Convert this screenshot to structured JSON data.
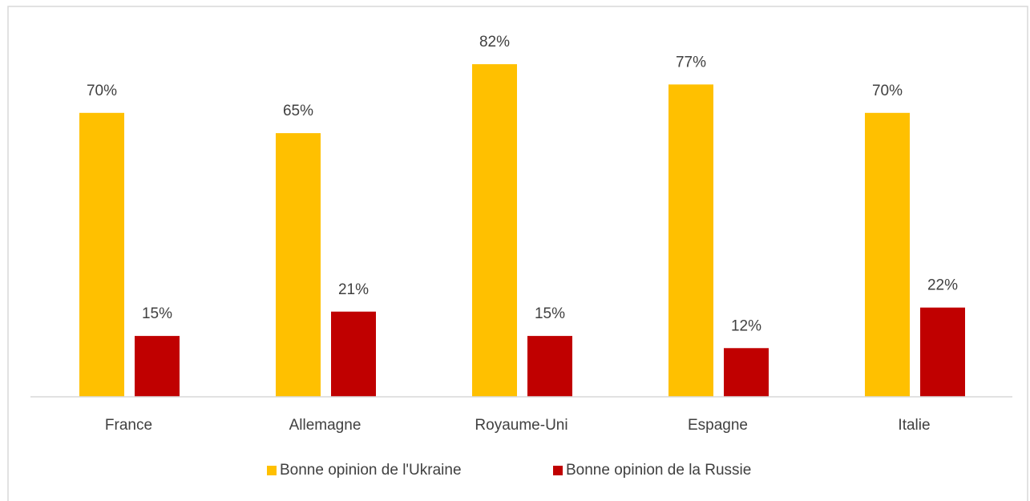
{
  "chart_data": {
    "type": "bar",
    "categories": [
      "France",
      "Allemagne",
      "Royaume-Uni",
      "Espagne",
      "Italie"
    ],
    "series": [
      {
        "name": "Bonne opinion de l'Ukraine",
        "color": "#ffc000",
        "values": [
          70,
          65,
          82,
          77,
          70
        ],
        "value_labels": [
          "70%",
          "65%",
          "82%",
          "77%",
          "70%"
        ]
      },
      {
        "name": "Bonne opinion de la Russie",
        "color": "#c00000",
        "values": [
          15,
          21,
          15,
          12,
          22
        ],
        "value_labels": [
          "15%",
          "21%",
          "15%",
          "12%",
          "22%"
        ]
      }
    ],
    "legend": "bottom"
  }
}
